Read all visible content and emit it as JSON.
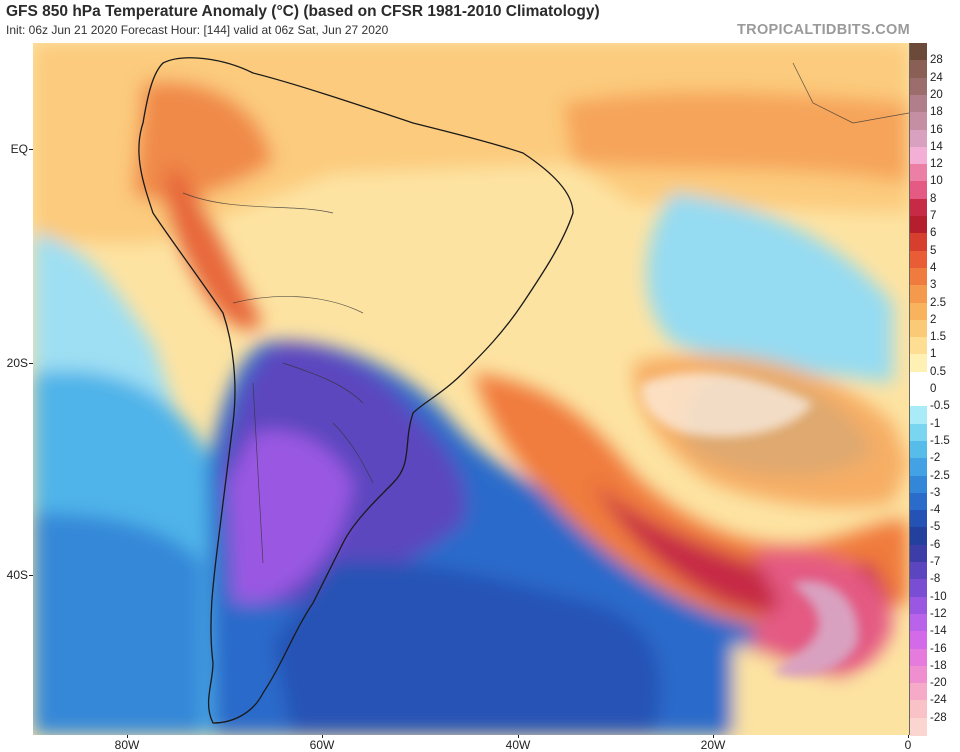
{
  "header": {
    "title": "GFS 850 hPa Temperature Anomaly (°C) (based on CFSR 1981-2010 Climatology)",
    "subtitle": "Init: 06z Jun 21 2020   Forecast Hour: [144]   valid at 06z Sat, Jun 27 2020",
    "credit": "TROPICALTIDBITS.COM"
  },
  "map": {
    "lat_labels": [
      "EQ",
      "20S",
      "40S"
    ],
    "lon_labels": [
      "80W",
      "60W",
      "40W",
      "20W",
      "0"
    ]
  },
  "colorbar": {
    "labels": [
      "28",
      "24",
      "20",
      "18",
      "16",
      "14",
      "12",
      "10",
      "8",
      "7",
      "6",
      "5",
      "4",
      "3",
      "2.5",
      "2",
      "1.5",
      "1",
      "0.5",
      "0",
      "-0.5",
      "-1",
      "-1.5",
      "-2",
      "-2.5",
      "-3",
      "-4",
      "-5",
      "-6",
      "-7",
      "-8",
      "-10",
      "-12",
      "-14",
      "-16",
      "-18",
      "-20",
      "-24",
      "-28"
    ],
    "colors": [
      "#6b4a3a",
      "#8a5f55",
      "#9c6d6d",
      "#b07f89",
      "#c48ea3",
      "#d9a1c0",
      "#f4afd6",
      "#ec7fa6",
      "#e45a83",
      "#c62a44",
      "#b51e2d",
      "#d63f2e",
      "#e85d35",
      "#f07b3e",
      "#f5994c",
      "#f8b35c",
      "#fbca76",
      "#fdde92",
      "#fff0b4",
      "#ffffff",
      "#ffffff",
      "#a9ecf7",
      "#7ad6f0",
      "#56bdeb",
      "#43a2e3",
      "#3386d8",
      "#2b6bca",
      "#2552b5",
      "#22409c",
      "#3c3da6",
      "#5b46bf",
      "#7a4ed3",
      "#9a58e2",
      "#b962ea",
      "#d36be8",
      "#e67bde",
      "#f08fd0",
      "#f5aac8",
      "#f8c2c6",
      "#fbd6d1"
    ]
  }
}
